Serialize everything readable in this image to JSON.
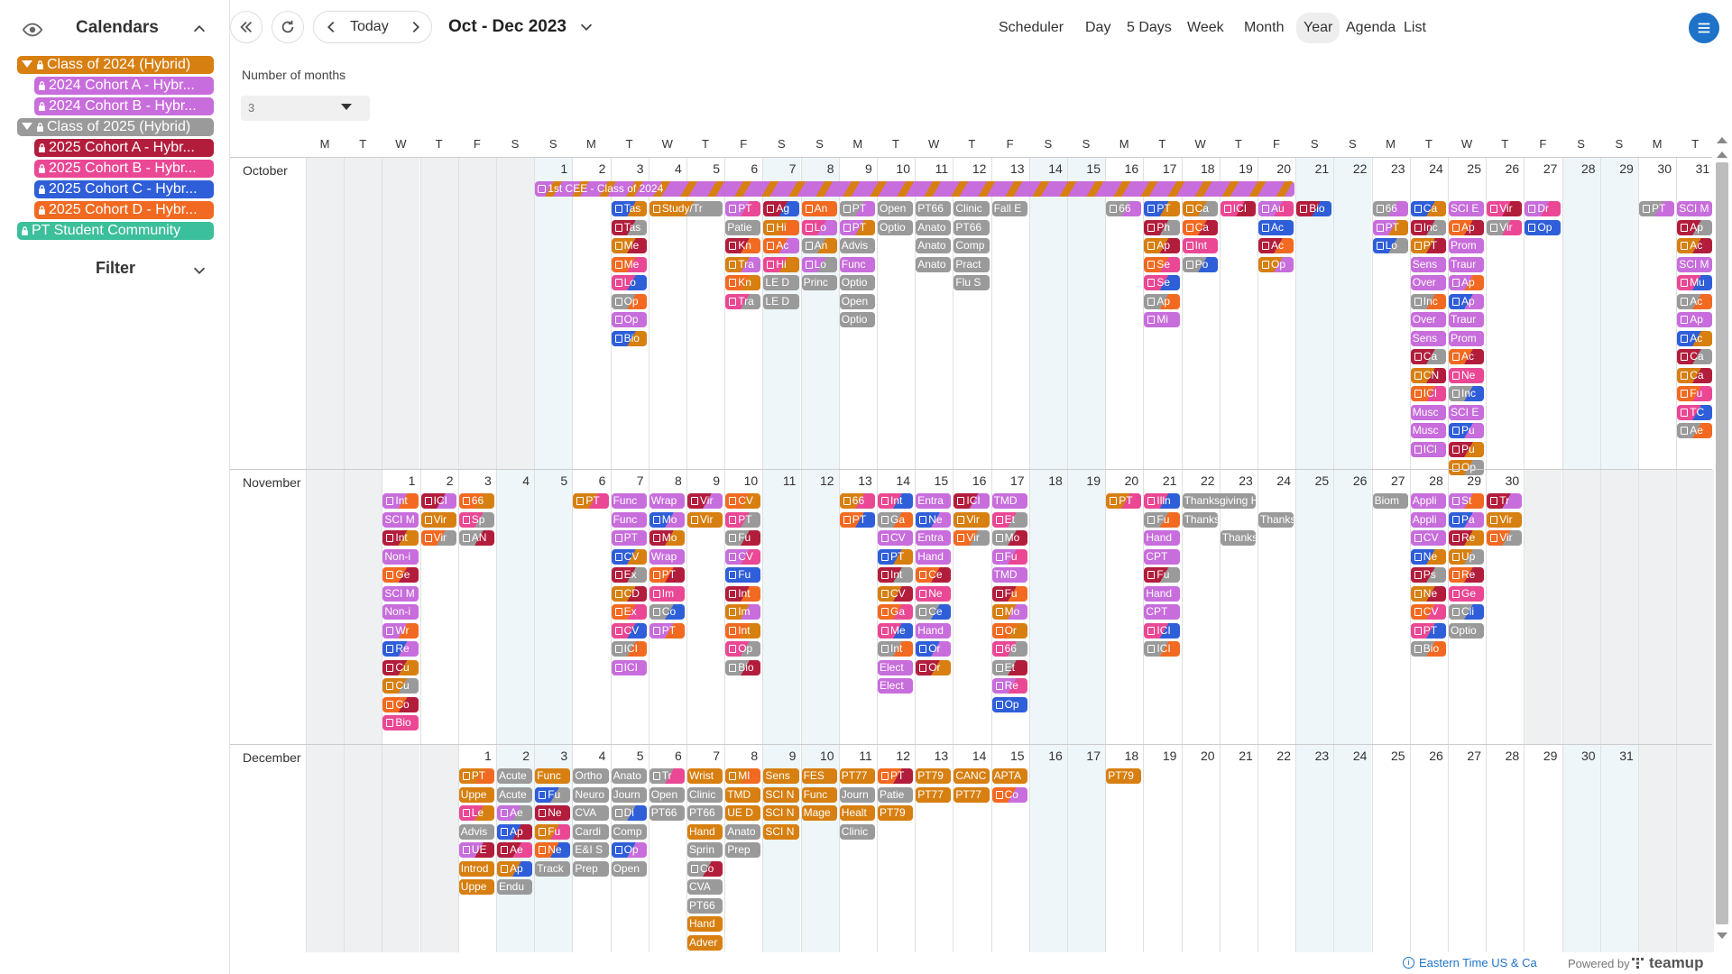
{
  "sidebar": {
    "title": "Calendars",
    "calendars": [
      {
        "label": "Class of 2024 (Hybrid)",
        "color": "#d77f10",
        "group": true
      },
      {
        "label": "2024 Cohort A - Hybr...",
        "color": "#c86ddc",
        "group": false
      },
      {
        "label": "2024 Cohort B - Hybr...",
        "color": "#c86ddc",
        "group": false
      },
      {
        "label": "Class of 2025 (Hybrid)",
        "color": "#9a9a9a",
        "group": true
      },
      {
        "label": "2025 Cohort A - Hybr...",
        "color": "#b31d3c",
        "group": false
      },
      {
        "label": "2025 Cohort B - Hybr...",
        "color": "#ea4894",
        "group": false
      },
      {
        "label": "2025 Cohort C - Hybr...",
        "color": "#2f5ed9",
        "group": false
      },
      {
        "label": "2025 Cohort D - Hybr...",
        "color": "#f26a21",
        "group": false
      },
      {
        "label": "PT Student Community",
        "color": "#3cbf9b",
        "group": false,
        "top": true
      }
    ],
    "filter_label": "Filter"
  },
  "toolbar": {
    "today_label": "Today",
    "date_range": "Oct - Dec 2023",
    "views": [
      "Scheduler",
      "Day",
      "5 Days",
      "Week",
      "Month",
      "Year",
      "Agenda",
      "List"
    ],
    "active_view": "Year"
  },
  "months_selector": {
    "label": "Number of months",
    "value": "3"
  },
  "weekday_headers": [
    "M",
    "T",
    "W",
    "T",
    "F",
    "S",
    "S",
    "M",
    "T",
    "W",
    "T",
    "F",
    "S",
    "S",
    "M",
    "T",
    "W",
    "T",
    "F",
    "S",
    "S",
    "M",
    "T",
    "W",
    "T",
    "F",
    "S",
    "S",
    "M",
    "T",
    "W",
    "T",
    "F",
    "S",
    "S",
    "M",
    "T"
  ],
  "months": [
    {
      "name": "October",
      "offset": 6,
      "days": 31
    },
    {
      "name": "November",
      "offset": 2,
      "days": 30
    },
    {
      "name": "December",
      "offset": 4,
      "days": 31
    }
  ],
  "colors": {
    "orange": "#d77f10",
    "purple": "#c86ddc",
    "gray": "#9a9a9a",
    "darkred": "#b31d3c",
    "pink": "#ea4894",
    "blue": "#2f5ed9",
    "red": "#f26a21",
    "teal": "#3cbf9b"
  },
  "events": {
    "oct_banner": "1st CEE - Class of 2024",
    "oct": [
      [
        3,
        [
          "Tas",
          "Tas",
          "Me",
          "Me",
          "Lo",
          "Op",
          "Op",
          "Bio"
        ]
      ],
      [
        4,
        [
          "Study/Tr"
        ]
      ],
      [
        6,
        [
          "PT",
          "Patie",
          "Kn",
          "Tra",
          "Kn",
          "Tra"
        ]
      ],
      [
        7,
        [
          "Ag",
          "Hi",
          "Ac",
          "Hi",
          "LE D",
          "LE D"
        ]
      ],
      [
        8,
        [
          "An",
          "Lo",
          "An",
          "Lo",
          "Princ"
        ]
      ],
      [
        9,
        [
          "PT",
          "PT",
          "Advis",
          "Func",
          "Optio",
          "Open",
          "Optio"
        ]
      ],
      [
        10,
        [
          "Open",
          "Optio"
        ]
      ],
      [
        11,
        [
          "PT66",
          "Anato",
          "Anato",
          "Anato"
        ]
      ],
      [
        12,
        [
          "Clinic",
          "PT66",
          "Comp",
          "Pract",
          "Flu S"
        ]
      ],
      [
        13,
        [
          "Fall E"
        ]
      ],
      [
        16,
        [
          "66"
        ]
      ],
      [
        17,
        [
          "PT",
          "Ph",
          "Ap",
          "Se",
          "Se",
          "Ap",
          "Mi"
        ]
      ],
      [
        18,
        [
          "Ca",
          "Ca",
          "Int",
          "Po"
        ]
      ],
      [
        19,
        [
          "ICI"
        ]
      ],
      [
        20,
        [
          "Au",
          "Ac",
          "Ac",
          "Op"
        ]
      ],
      [
        21,
        [
          "Bio"
        ]
      ],
      [
        23,
        [
          "66",
          "PT",
          "Lo"
        ]
      ],
      [
        24,
        [
          "Ca",
          "Inc",
          "PT",
          "Sens",
          "Over",
          "Inc",
          "Over",
          "Sens",
          "Ca",
          "CN",
          "ICI",
          "Musc",
          "Musc",
          "ICI"
        ]
      ],
      [
        25,
        [
          "SCI E",
          "Ap",
          "Prom",
          "Traur",
          "Ap",
          "Ap",
          "Traur",
          "Prom",
          "Ac",
          "Ne",
          "Inc",
          "SCI E",
          "Pu",
          "Pu",
          "Op"
        ]
      ],
      [
        26,
        [
          "Vir",
          "Vir"
        ]
      ],
      [
        27,
        [
          "Dr",
          "Op"
        ]
      ],
      [
        30,
        [
          "PT"
        ]
      ],
      [
        31,
        [
          "SCI M",
          "Ap",
          "Ac",
          "SCI M",
          "Mu",
          "Ac",
          "Ap",
          "Ac",
          "Ca",
          "Ca",
          "Fu",
          "TC",
          "Ae"
        ]
      ]
    ],
    "nov": [
      [
        1,
        [
          "Int",
          "SCI M",
          "Int",
          "Non-i",
          "Ge",
          "SCI M",
          "Non-i",
          "Wr",
          "Re",
          "Cu",
          "Cu",
          "Co",
          "Bio"
        ]
      ],
      [
        2,
        [
          "ICI",
          "Vir",
          "Vir"
        ]
      ],
      [
        3,
        [
          "66",
          "Sp",
          "AN"
        ]
      ],
      [
        6,
        [
          "PT"
        ]
      ],
      [
        7,
        [
          "Func",
          "Func",
          "PT",
          "CV",
          "Ex",
          "CD",
          "Ex",
          "CV",
          "ICI",
          "ICI"
        ]
      ],
      [
        8,
        [
          "Wrap",
          "Mo",
          "Mo",
          "Wrap",
          "PT",
          "Im",
          "Co",
          "PT"
        ]
      ],
      [
        9,
        [
          "Vir",
          "Vir"
        ]
      ],
      [
        10,
        [
          "CV",
          "PT",
          "Fu",
          "CV",
          "Fu",
          "Int",
          "Im",
          "Int",
          "Op",
          "Bio"
        ]
      ],
      [
        13,
        [
          "66",
          "PT"
        ]
      ],
      [
        14,
        [
          "Int",
          "Ga",
          "CV",
          "PT",
          "Int",
          "CV",
          "Ga",
          "Me",
          "Int",
          "Elect",
          "Elect"
        ]
      ],
      [
        15,
        [
          "Entra",
          "Ne",
          "Entra",
          "Hand",
          "Ce",
          "Ne",
          "Ce",
          "Hand",
          "Or",
          "Or"
        ]
      ],
      [
        16,
        [
          "ICI",
          "Vir",
          "Vir"
        ]
      ],
      [
        17,
        [
          "TMD",
          "Et",
          "Mo",
          "Fu",
          "TMD",
          "Fu",
          "Mo",
          "Or",
          "66",
          "Et",
          "Re",
          "Op"
        ]
      ],
      [
        20,
        [
          "PT"
        ]
      ],
      [
        21,
        [
          "Illn",
          "Fu",
          "Hand",
          "CPT",
          "Fu",
          "Hand",
          "CPT",
          "ICI",
          "ICI"
        ]
      ],
      [
        22,
        [
          "Thanksgiving Ho",
          "Thanksgivin"
        ]
      ],
      [
        23,
        [
          "",
          "",
          "Thanksgivin"
        ]
      ],
      [
        24,
        [
          "",
          "Thanksgivin"
        ]
      ],
      [
        27,
        [
          "Biom"
        ]
      ],
      [
        28,
        [
          "Appli",
          "Appli",
          "CV",
          "Ne",
          "Ps",
          "Ne",
          "CV",
          "PT",
          "Bio"
        ]
      ],
      [
        29,
        [
          "St",
          "Pa",
          "Re",
          "Up",
          "Re",
          "Ge",
          "Cli",
          "Optio"
        ]
      ],
      [
        30,
        [
          "Tr",
          "Vir",
          "Vir"
        ]
      ]
    ],
    "dec": [
      [
        1,
        [
          "PT",
          "Uppe",
          "Le",
          "Advis",
          "UE",
          "Introd",
          "Uppe"
        ]
      ],
      [
        2,
        [
          "Acute",
          "Acute",
          "Ae",
          "Ap",
          "Ae",
          "Ap",
          "Endu"
        ]
      ],
      [
        3,
        [
          "Func",
          "Fu",
          "Ne",
          "Fu",
          "Ne",
          "Track"
        ]
      ],
      [
        4,
        [
          "Ortho",
          "Neuro",
          "CVA",
          "Cardi",
          "E&I S",
          "Prep"
        ]
      ],
      [
        5,
        [
          "Anato",
          "Journ",
          "Di",
          "Comp",
          "Op",
          "Open"
        ]
      ],
      [
        6,
        [
          "Tr",
          "Open",
          "PT66"
        ]
      ],
      [
        7,
        [
          "Wrist",
          "Clinic",
          "PT66",
          "Hand",
          "Sprin",
          "Co",
          "CVA",
          "PT66",
          "Hand",
          "Adver"
        ]
      ],
      [
        8,
        [
          "MI",
          "TMD",
          "UE D",
          "Anato",
          "Prep"
        ]
      ],
      [
        9,
        [
          "Sens",
          "SCI N",
          "SCI N",
          "SCI N"
        ]
      ],
      [
        10,
        [
          "FES",
          "Func",
          "Mage"
        ]
      ],
      [
        11,
        [
          "PT77",
          "Journ",
          "Healt",
          "Clinic"
        ]
      ],
      [
        12,
        [
          "PT",
          "Patie",
          "PT79"
        ]
      ],
      [
        13,
        [
          "PT79",
          "PT77"
        ]
      ],
      [
        14,
        [
          "CANC",
          "PT77"
        ]
      ],
      [
        15,
        [
          "APTA",
          "Co"
        ]
      ],
      [
        18,
        [
          "PT79"
        ]
      ]
    ]
  },
  "footer": {
    "timezone": "Eastern Time US & Ca",
    "powered": "Powered by",
    "brand": "teamup"
  }
}
